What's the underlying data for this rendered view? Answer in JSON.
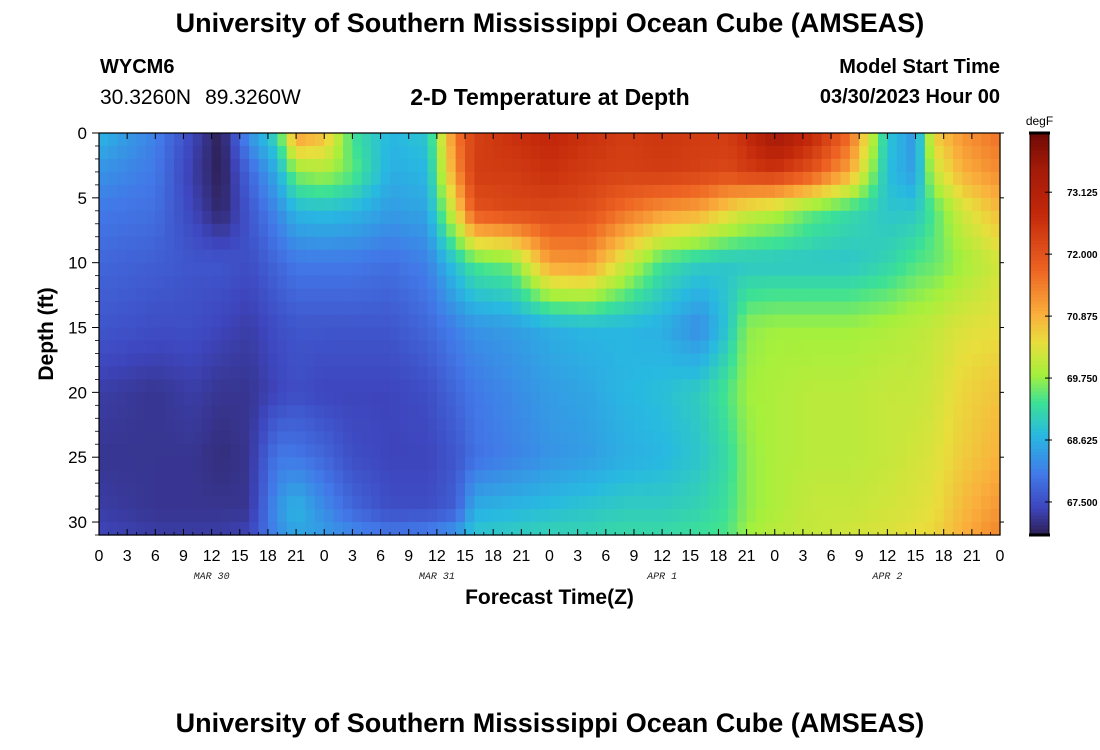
{
  "header": {
    "title": "University of Southern Mississippi Ocean Cube (AMSEAS)",
    "station": "WYCM6",
    "lat": "30.3260N",
    "lon": "89.3260W",
    "subtitle": "2-D Temperature at Depth",
    "model_start_label": "Model Start Time",
    "model_start_value": "03/30/2023 Hour 00"
  },
  "footer": {
    "title": "University of Southern Mississippi Ocean Cube (AMSEAS)"
  },
  "chart_data": {
    "type": "heatmap",
    "xlabel": "Forecast Time(Z)",
    "ylabel": "Depth (ft)",
    "colorbar_unit": "degF",
    "x_hours": [
      0,
      96
    ],
    "ylim": [
      0,
      31
    ],
    "y_inverted": true,
    "x_tick_labels": [
      "0",
      "3",
      "6",
      "9",
      "12",
      "15",
      "18",
      "21",
      "0",
      "3",
      "6",
      "9",
      "12",
      "15",
      "18",
      "21",
      "0",
      "3",
      "6",
      "9",
      "12",
      "15",
      "18",
      "21",
      "0",
      "3",
      "6",
      "9",
      "12",
      "15",
      "18",
      "21",
      "0"
    ],
    "y_ticks": [
      0,
      5,
      10,
      15,
      20,
      25,
      30
    ],
    "date_labels": [
      {
        "label": "MAR 30",
        "hour": 12
      },
      {
        "label": "MAR 31",
        "hour": 36
      },
      {
        "label": "APR 1",
        "hour": 60
      },
      {
        "label": "APR 2",
        "hour": 84
      }
    ],
    "colorbar_ticks": [
      "67.500",
      "68.625",
      "69.750",
      "70.875",
      "72.000",
      "73.125"
    ],
    "colorbar_range": [
      66.9,
      74.2
    ],
    "depth_levels": [
      0,
      3,
      6,
      10,
      15,
      20,
      25,
      29,
      31
    ],
    "series": [
      {
        "hour": 0,
        "temps": [
          68.7,
          68.3,
          68.0,
          67.8,
          67.6,
          67.3,
          67.2,
          67.3,
          67.4
        ]
      },
      {
        "hour": 6,
        "temps": [
          68.1,
          68.0,
          67.9,
          67.7,
          67.5,
          67.2,
          67.2,
          67.2,
          67.3
        ]
      },
      {
        "hour": 10,
        "temps": [
          67.4,
          67.3,
          67.4,
          67.6,
          67.5,
          67.3,
          67.2,
          67.2,
          67.3
        ]
      },
      {
        "hour": 13,
        "temps": [
          66.9,
          66.9,
          67.0,
          67.6,
          67.4,
          67.2,
          67.1,
          67.2,
          67.3
        ]
      },
      {
        "hour": 16,
        "temps": [
          68.3,
          67.8,
          67.6,
          67.5,
          67.3,
          67.2,
          67.2,
          67.2,
          67.4
        ]
      },
      {
        "hour": 19,
        "temps": [
          69.2,
          68.6,
          68.2,
          67.8,
          67.5,
          67.4,
          68.0,
          68.3,
          68.2
        ]
      },
      {
        "hour": 21,
        "temps": [
          71.2,
          69.7,
          68.7,
          68.0,
          67.6,
          67.5,
          68.0,
          68.7,
          68.5
        ]
      },
      {
        "hour": 24,
        "temps": [
          70.8,
          69.9,
          68.8,
          68.0,
          67.6,
          67.4,
          67.8,
          68.2,
          68.4
        ]
      },
      {
        "hour": 27,
        "temps": [
          69.3,
          69.5,
          68.7,
          68.0,
          67.6,
          67.4,
          67.5,
          67.8,
          68.2
        ]
      },
      {
        "hour": 31,
        "temps": [
          68.7,
          68.6,
          68.4,
          67.9,
          67.6,
          67.4,
          67.4,
          67.5,
          68.0
        ]
      },
      {
        "hour": 35,
        "temps": [
          68.9,
          68.7,
          68.5,
          68.1,
          67.8,
          67.5,
          67.4,
          67.5,
          68.1
        ]
      },
      {
        "hour": 38,
        "temps": [
          71.5,
          71.2,
          70.4,
          68.9,
          68.1,
          67.8,
          67.6,
          67.7,
          68.4
        ]
      },
      {
        "hour": 40,
        "temps": [
          72.3,
          72.4,
          72.0,
          69.4,
          68.3,
          68.0,
          67.9,
          68.6,
          68.9
        ]
      },
      {
        "hour": 44,
        "temps": [
          72.6,
          72.4,
          72.2,
          69.6,
          68.4,
          68.2,
          68.1,
          68.7,
          69.0
        ]
      },
      {
        "hour": 48,
        "temps": [
          72.8,
          72.6,
          72.2,
          71.1,
          68.6,
          68.4,
          68.3,
          68.8,
          69.1
        ]
      },
      {
        "hour": 52,
        "temps": [
          72.6,
          72.4,
          72.1,
          71.2,
          68.7,
          68.5,
          68.4,
          68.9,
          69.1
        ]
      },
      {
        "hour": 56,
        "temps": [
          72.4,
          72.3,
          71.6,
          70.2,
          68.7,
          68.7,
          68.6,
          69.0,
          69.2
        ]
      },
      {
        "hour": 60,
        "temps": [
          72.5,
          72.4,
          71.2,
          69.3,
          68.6,
          68.8,
          68.7,
          69.0,
          69.2
        ]
      },
      {
        "hour": 64,
        "temps": [
          72.4,
          72.3,
          71.0,
          69.0,
          68.2,
          69.0,
          68.9,
          69.1,
          69.3
        ]
      },
      {
        "hour": 67,
        "temps": [
          72.4,
          72.2,
          70.5,
          68.9,
          68.9,
          69.4,
          69.2,
          69.3,
          69.4
        ]
      },
      {
        "hour": 69,
        "temps": [
          72.7,
          72.4,
          70.2,
          68.9,
          69.7,
          69.8,
          69.7,
          69.7,
          69.8
        ]
      },
      {
        "hour": 72,
        "temps": [
          73.6,
          72.5,
          70.0,
          68.9,
          69.8,
          69.9,
          69.9,
          69.9,
          70.0
        ]
      },
      {
        "hour": 76,
        "temps": [
          72.8,
          72.0,
          69.5,
          68.9,
          69.8,
          70.0,
          70.0,
          70.1,
          70.1
        ]
      },
      {
        "hour": 80,
        "temps": [
          71.7,
          71.0,
          69.2,
          68.9,
          69.8,
          70.0,
          70.0,
          70.1,
          70.2
        ]
      },
      {
        "hour": 84,
        "temps": [
          68.9,
          68.8,
          68.9,
          69.1,
          69.9,
          70.1,
          70.1,
          70.2,
          70.3
        ]
      },
      {
        "hour": 87,
        "temps": [
          68.3,
          68.4,
          68.9,
          69.4,
          70.0,
          70.1,
          70.2,
          70.3,
          70.4
        ]
      },
      {
        "hour": 89,
        "temps": [
          70.6,
          70.1,
          69.4,
          69.5,
          70.1,
          70.2,
          70.3,
          70.4,
          70.5
        ]
      },
      {
        "hour": 92,
        "temps": [
          71.2,
          70.9,
          70.2,
          69.8,
          70.3,
          70.5,
          70.6,
          70.8,
          70.9
        ]
      },
      {
        "hour": 96,
        "temps": [
          71.6,
          71.3,
          70.8,
          70.2,
          70.4,
          70.7,
          70.9,
          71.2,
          71.4
        ]
      }
    ]
  }
}
